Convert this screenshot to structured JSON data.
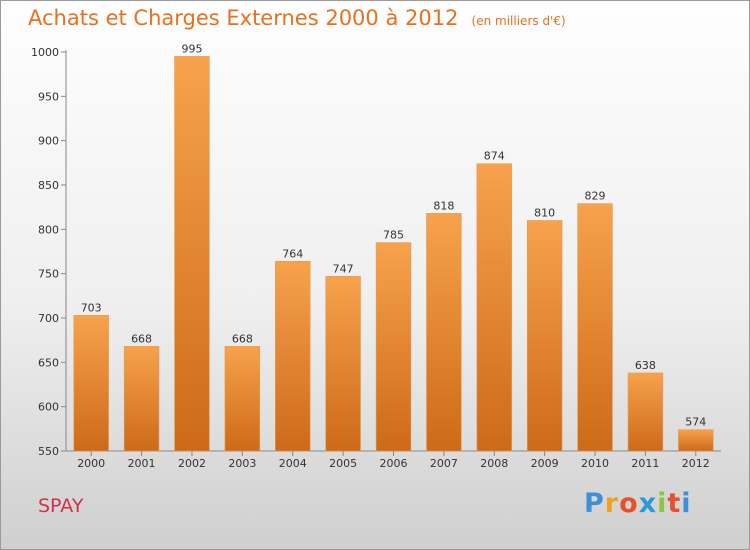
{
  "chart_data": {
    "type": "bar",
    "title": "Achats et Charges Externes 2000 à 2012",
    "subtitle": "(en milliers d'€)",
    "categories": [
      "2000",
      "2001",
      "2002",
      "2003",
      "2004",
      "2005",
      "2006",
      "2007",
      "2008",
      "2009",
      "2010",
      "2011",
      "2012"
    ],
    "values": [
      703,
      668,
      995,
      668,
      764,
      747,
      785,
      818,
      874,
      810,
      829,
      638,
      574
    ],
    "ylim": [
      550,
      1000
    ],
    "yticks": [
      550,
      600,
      650,
      700,
      750,
      800,
      850,
      900,
      950,
      1000
    ],
    "grid": false,
    "legend": "none",
    "bar_color_top": "#f7a24c",
    "bar_color_bottom": "#cd6a1a"
  },
  "footer": {
    "commune": "SPAY",
    "logo_letters": [
      "P",
      "r",
      "o",
      "x",
      "i",
      "t",
      "i"
    ],
    "logo_colors": [
      "#3f8fd8",
      "#f0a020",
      "#e8502a",
      "#2a9ad8",
      "#8cc63f",
      "#e8502a",
      "#3f8fd8"
    ]
  }
}
